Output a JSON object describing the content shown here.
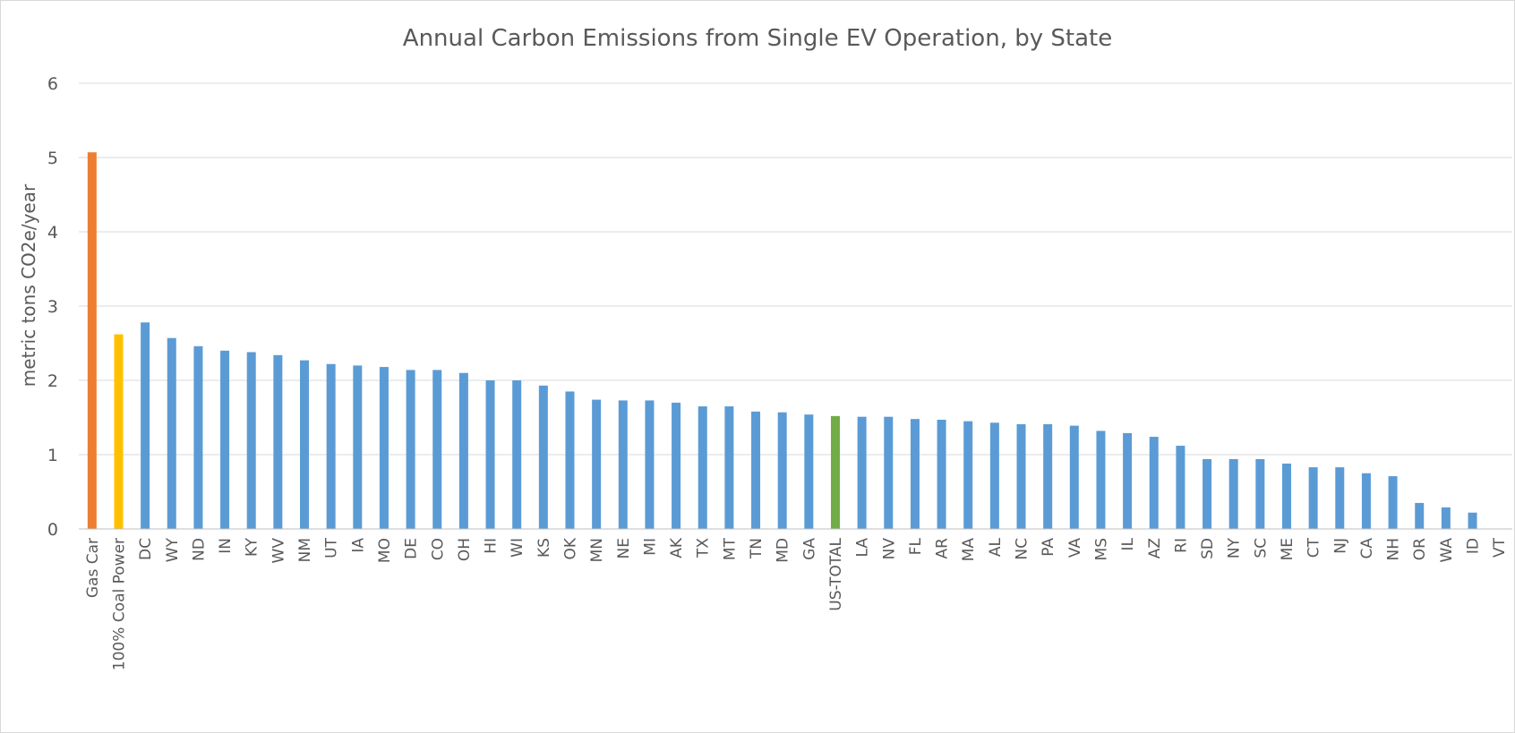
{
  "chart_data": {
    "type": "bar",
    "title": "Annual Carbon Emissions from Single EV Operation, by State",
    "xlabel": "",
    "ylabel": "metric tons CO2e/year",
    "ylim": [
      0,
      6
    ],
    "yticks": [
      "0",
      "1",
      "2",
      "3",
      "4",
      "5",
      "6"
    ],
    "grid": true,
    "legend": "none",
    "categories": [
      "Gas Car",
      "100% Coal Power",
      "DC",
      "WY",
      "ND",
      "IN",
      "KY",
      "WV",
      "NM",
      "UT",
      "IA",
      "MO",
      "DE",
      "CO",
      "OH",
      "HI",
      "WI",
      "KS",
      "OK",
      "MN",
      "NE",
      "MI",
      "AK",
      "TX",
      "MT",
      "TN",
      "MD",
      "GA",
      "US-TOTAL",
      "LA",
      "NV",
      "FL",
      "AR",
      "MA",
      "AL",
      "NC",
      "PA",
      "VA",
      "MS",
      "IL",
      "AZ",
      "RI",
      "SD",
      "NY",
      "SC",
      "ME",
      "CT",
      "NJ",
      "CA",
      "NH",
      "OR",
      "WA",
      "ID",
      "VT"
    ],
    "values": [
      5.07,
      2.62,
      2.78,
      2.57,
      2.46,
      2.4,
      2.38,
      2.34,
      2.27,
      2.22,
      2.2,
      2.18,
      2.14,
      2.14,
      2.1,
      2.0,
      2.0,
      1.93,
      1.85,
      1.74,
      1.73,
      1.73,
      1.7,
      1.65,
      1.65,
      1.58,
      1.57,
      1.54,
      1.52,
      1.51,
      1.51,
      1.48,
      1.47,
      1.45,
      1.43,
      1.41,
      1.41,
      1.39,
      1.32,
      1.29,
      1.24,
      1.12,
      0.94,
      0.94,
      0.94,
      0.88,
      0.83,
      0.83,
      0.75,
      0.71,
      0.35,
      0.29,
      0.22,
      0.0
    ],
    "colors": {
      "highlight_gas_car": "#ED7D31",
      "highlight_coal": "#FFC000",
      "highlight_us_total": "#70AD47",
      "default": "#5B9BD5"
    }
  }
}
